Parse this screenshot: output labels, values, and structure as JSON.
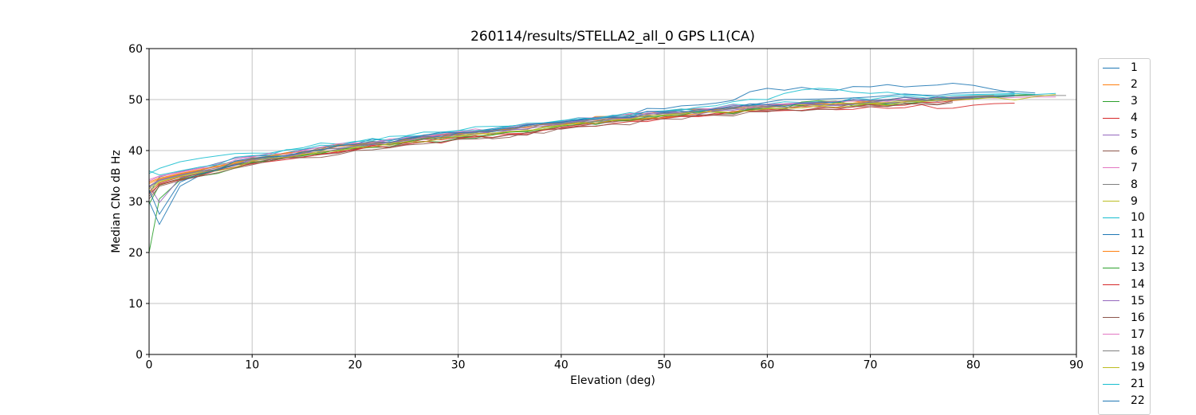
{
  "figure": {
    "background": "#ffffff",
    "spine_color": "#000000",
    "tick_color": "#000000"
  },
  "chart_data": {
    "type": "line",
    "title": "260114/results/STELLA2_all_0 GPS L1(CA)",
    "xlabel": "Elevation (deg)",
    "ylabel": "Median CNo dB Hz",
    "xlim": [
      0,
      90
    ],
    "ylim": [
      0,
      60
    ],
    "xticks": [
      0,
      10,
      20,
      30,
      40,
      50,
      60,
      70,
      80,
      90
    ],
    "yticks": [
      0,
      10,
      20,
      30,
      40,
      50,
      60
    ],
    "grid": true,
    "grid_color": "#c3c3c3",
    "legend": {
      "position": "right-outside",
      "edge_color": "#cccccc",
      "note": "entries run 1-19 then 21-22; 22 clipped by image edge"
    },
    "wiggle_db": 0.5,
    "elev_grid": [
      0,
      1,
      3,
      5,
      10,
      15,
      20,
      25,
      30,
      35,
      40,
      45,
      50,
      55,
      60,
      65,
      70,
      75,
      78,
      80,
      82,
      84,
      86,
      88,
      89
    ],
    "series": [
      {
        "name": "1",
        "color": "#1f77b4",
        "values": [
          31.5,
          34.8,
          35.9,
          36.6,
          38.9,
          40.2,
          41.3,
          42.8,
          43.5,
          44.8,
          45.7,
          46.9,
          48.2,
          49.3,
          52.2,
          51.9,
          52.5,
          52.7,
          53.2,
          52.8,
          52.0,
          51.3
        ]
      },
      {
        "name": "2",
        "color": "#ff7f0e",
        "values": [
          33.8,
          34.6,
          35.5,
          36.3,
          38.6,
          39.8,
          41.2,
          42.4,
          43.1,
          44.5,
          45.2,
          46.7,
          47.7,
          48.3,
          48.6,
          49.5,
          49.3,
          50.2,
          50.0,
          50.7,
          50.9
        ]
      },
      {
        "name": "3",
        "color": "#2ca02c",
        "values": [
          20.0,
          30.5,
          34.2,
          35.0,
          37.6,
          39.0,
          40.4,
          41.6,
          42.4,
          43.6,
          44.9,
          45.8,
          46.9,
          47.6,
          48.4,
          49.6,
          49.0,
          49.8,
          50.3,
          50.1,
          50.6,
          50.9,
          51.0
        ]
      },
      {
        "name": "4",
        "color": "#d62728",
        "values": [
          32.0,
          33.6,
          34.8,
          35.4,
          37.8,
          39.2,
          40.3,
          41.5,
          42.6,
          43.3,
          44.6,
          45.8,
          46.6,
          47.3,
          48.0,
          48.6,
          49.0,
          49.5,
          49.8,
          50.1
        ]
      },
      {
        "name": "5",
        "color": "#9467bd",
        "values": [
          33.2,
          29.8,
          34.6,
          35.8,
          38.0,
          39.4,
          40.8,
          41.9,
          43.0,
          44.0,
          45.0,
          46.2,
          47.2,
          47.8,
          48.5,
          48.9,
          49.4,
          49.9,
          50.2,
          50.4,
          50.6
        ]
      },
      {
        "name": "6",
        "color": "#8c564b",
        "values": [
          31.0,
          33.4,
          34.5,
          35.6,
          37.5,
          38.8,
          40.2,
          41.3,
          42.5,
          42.6,
          44.4,
          45.6,
          46.4,
          47.1,
          47.8,
          48.4,
          48.9,
          49.4,
          49.7
        ]
      },
      {
        "name": "7",
        "color": "#e377c2",
        "values": [
          34.0,
          34.9,
          35.7,
          36.5,
          38.7,
          40.0,
          41.4,
          42.5,
          43.6,
          44.4,
          45.6,
          46.6,
          47.6,
          48.2,
          49.0,
          49.4,
          49.8,
          50.2,
          50.5,
          50.7,
          50.8
        ]
      },
      {
        "name": "8",
        "color": "#7f7f7f",
        "values": [
          33.0,
          34.3,
          35.3,
          36.1,
          38.3,
          39.6,
          41.0,
          42.2,
          43.3,
          44.2,
          45.4,
          46.4,
          47.4,
          48.0,
          48.8,
          49.2,
          49.6,
          50.0,
          50.3,
          50.5,
          50.7,
          50.8
        ]
      },
      {
        "name": "9",
        "color": "#bcbd22",
        "values": [
          32.5,
          33.9,
          35.0,
          35.9,
          38.1,
          39.3,
          40.7,
          41.8,
          42.9,
          43.8,
          45.0,
          46.0,
          47.0,
          47.7,
          48.3,
          48.8,
          49.3,
          49.7,
          50.0,
          50.2
        ]
      },
      {
        "name": "10",
        "color": "#17becf",
        "values": [
          35.5,
          36.5,
          37.8,
          38.5,
          39.5,
          40.6,
          41.8,
          42.9,
          43.9,
          44.8,
          45.9,
          46.8,
          47.8,
          48.4,
          49.1,
          49.6,
          50.0,
          50.4,
          50.6,
          50.8,
          50.9,
          51.0
        ]
      },
      {
        "name": "11",
        "color": "#1f77b4",
        "values": [
          30.0,
          25.5,
          33.0,
          35.2,
          38.4,
          39.7,
          41.1,
          42.3,
          43.4,
          44.3,
          45.5,
          46.5,
          47.5,
          48.1,
          49.5,
          50.1,
          50.5,
          50.9,
          51.2,
          51.4,
          51.5,
          51.6,
          51.3
        ]
      },
      {
        "name": "12",
        "color": "#ff7f0e",
        "values": [
          33.5,
          34.4,
          35.4,
          36.2,
          38.4,
          39.7,
          41.1,
          42.2,
          43.3,
          44.2,
          45.3,
          46.3,
          46.4,
          48.1,
          48.7,
          49.3,
          49.7,
          50.1,
          50.4,
          50.6,
          50.7
        ]
      },
      {
        "name": "13",
        "color": "#2ca02c",
        "values": [
          29.5,
          33.2,
          34.4,
          35.3,
          37.7,
          39.1,
          40.5,
          41.7,
          42.8,
          43.7,
          44.8,
          45.9,
          46.8,
          47.5,
          48.2,
          49.8,
          49.2,
          49.6,
          50.0,
          50.2,
          50.4,
          50.7,
          51.0
        ]
      },
      {
        "name": "14",
        "color": "#d62728",
        "values": [
          31.5,
          33.3,
          34.3,
          35.1,
          37.4,
          38.7,
          40.1,
          41.2,
          42.3,
          43.2,
          44.3,
          45.3,
          46.3,
          47.0,
          47.7,
          48.2,
          48.6,
          49.0,
          48.3,
          48.9,
          49.2,
          49.3
        ]
      },
      {
        "name": "15",
        "color": "#9467bd",
        "values": [
          33.0,
          34.2,
          35.2,
          36.0,
          38.2,
          39.5,
          40.9,
          42.0,
          43.1,
          44.0,
          45.2,
          46.2,
          47.2,
          47.8,
          48.6,
          49.0,
          49.5,
          49.9,
          50.1,
          50.3
        ]
      },
      {
        "name": "16",
        "color": "#8c564b",
        "values": [
          30.5,
          33.0,
          34.1,
          35.0,
          37.2,
          38.6,
          40.0,
          41.1,
          42.2,
          43.1,
          44.2,
          45.2,
          46.2,
          46.9,
          47.6,
          48.1,
          48.6,
          49.1,
          49.4
        ]
      },
      {
        "name": "17",
        "color": "#e377c2",
        "values": [
          34.3,
          35.0,
          35.8,
          36.6,
          38.8,
          40.1,
          41.5,
          42.6,
          43.7,
          44.6,
          45.7,
          46.7,
          47.7,
          48.3,
          49.1,
          49.5,
          49.9,
          50.2,
          50.4,
          50.5,
          50.3,
          50.4,
          50.5,
          50.5
        ]
      },
      {
        "name": "18",
        "color": "#7f7f7f",
        "values": [
          32.8,
          34.1,
          35.1,
          36.0,
          38.2,
          39.5,
          40.9,
          42.1,
          43.2,
          44.1,
          45.3,
          46.3,
          47.3,
          47.9,
          48.7,
          49.1,
          49.5,
          49.9,
          50.2,
          50.4,
          50.6,
          50.7,
          50.8,
          50.8,
          50.8
        ]
      },
      {
        "name": "19",
        "color": "#bcbd22",
        "values": [
          31.8,
          33.8,
          34.9,
          35.7,
          37.9,
          39.2,
          40.6,
          41.7,
          42.8,
          43.7,
          44.9,
          45.9,
          46.9,
          47.5,
          48.2,
          48.7,
          49.2,
          49.6,
          49.9,
          50.1,
          50.4,
          49.9,
          50.6,
          51.0
        ]
      },
      {
        "name": "21",
        "color": "#17becf",
        "values": [
          36.0,
          35.2,
          36.0,
          36.8,
          39.0,
          40.3,
          41.7,
          42.8,
          43.9,
          44.7,
          45.8,
          46.8,
          47.8,
          48.8,
          50.0,
          52.2,
          51.2,
          50.8,
          50.9,
          51.0,
          51.1,
          51.2,
          51.0,
          51.2
        ]
      },
      {
        "name": "22",
        "color": "#1f77b4",
        "values": [
          32.3,
          27.5,
          33.8,
          35.5,
          38.5,
          39.8,
          41.2,
          42.4,
          43.5,
          44.4,
          45.6,
          46.6,
          47.6,
          48.2,
          49.0,
          49.4,
          49.8,
          50.1,
          50.3,
          50.5,
          50.6,
          50.7
        ]
      }
    ]
  }
}
